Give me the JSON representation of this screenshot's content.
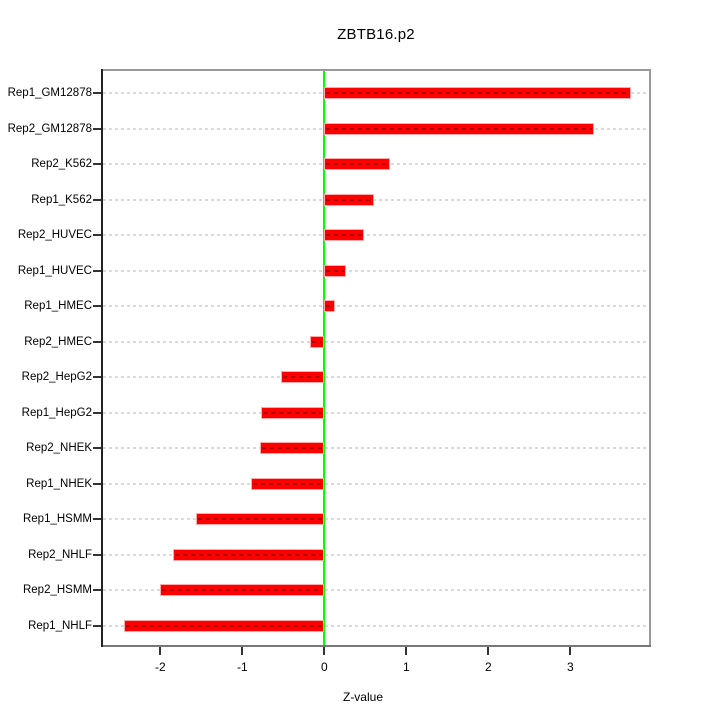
{
  "title": "ZBTB16.p2",
  "chart_data": {
    "type": "bar",
    "orientation": "horizontal",
    "title": "ZBTB16.p2",
    "xlabel": "Z-value",
    "categories": [
      "Rep1_GM12878",
      "Rep2_GM12878",
      "Rep2_K562",
      "Rep1_K562",
      "Rep2_HUVEC",
      "Rep1_HUVEC",
      "Rep1_HMEC",
      "Rep2_HMEC",
      "Rep2_HepG2",
      "Rep1_HepG2",
      "Rep2_NHEK",
      "Rep1_NHEK",
      "Rep1_HSMM",
      "Rep2_NHLF",
      "Rep2_HSMM",
      "Rep1_NHLF"
    ],
    "values": [
      3.74,
      3.29,
      0.8,
      0.61,
      0.48,
      0.27,
      0.13,
      -0.17,
      -0.53,
      -0.77,
      -0.79,
      -0.89,
      -1.57,
      -1.85,
      -2.0,
      -2.44
    ],
    "x_ticks": [
      -2,
      -1,
      0,
      1,
      2,
      3
    ],
    "xlim": [
      -2.7,
      3.96
    ],
    "grid": "horizontal dashed lines, one per category",
    "legend": "none",
    "colors": {
      "bar_fill": "#ff0000",
      "bar_edge": "#ffaaaa",
      "bar_inner_dash": "#a00000",
      "zero_line": "#00ff00",
      "grid_line": "#dadada",
      "box_border": "#999999",
      "left_axis": "#222222",
      "bottom_axis": "#777777",
      "tick": "#333333",
      "text": "#000000",
      "background": "#ffffff"
    }
  }
}
